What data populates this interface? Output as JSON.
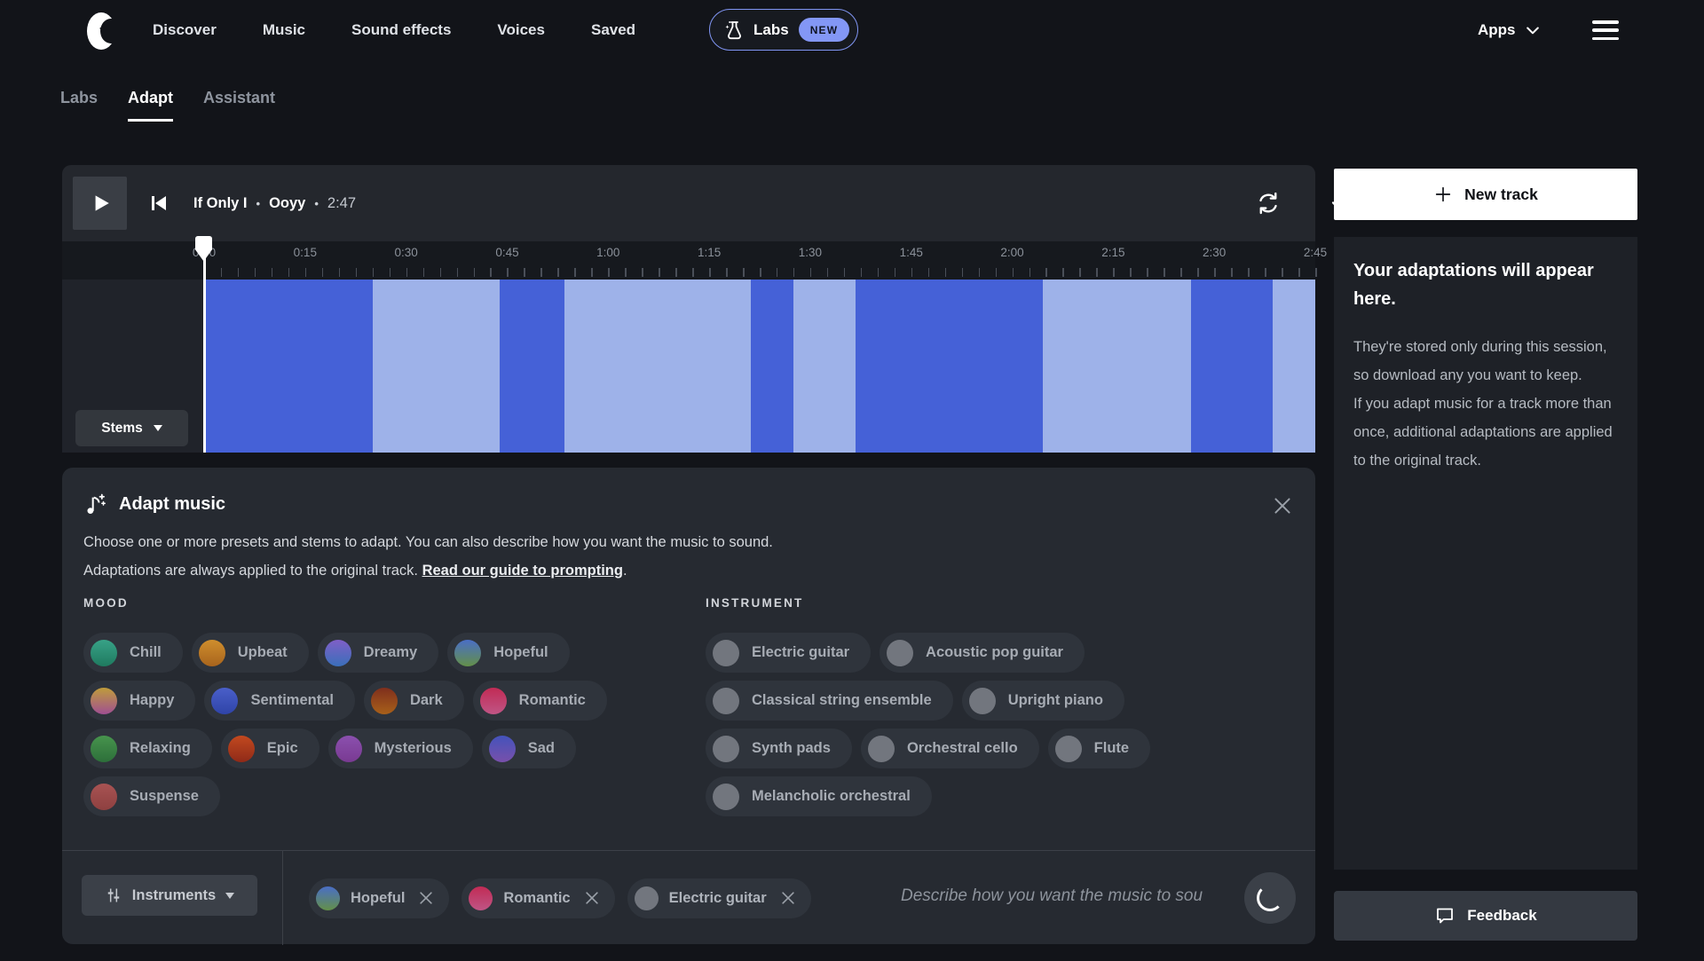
{
  "topnav": {
    "items": [
      "Discover",
      "Music",
      "Sound effects",
      "Voices",
      "Saved"
    ],
    "labs": {
      "label": "Labs",
      "badge": "NEW"
    },
    "apps_label": "Apps"
  },
  "tabs": [
    {
      "label": "Labs",
      "active": false
    },
    {
      "label": "Adapt",
      "active": true
    },
    {
      "label": "Assistant",
      "active": false
    }
  ],
  "player": {
    "track_title": "If Only I",
    "artist": "Ooyy",
    "duration": "2:47",
    "separator": "•",
    "stems_label": "Stems",
    "timeline_labels": [
      "0:00",
      "0:15",
      "0:30",
      "0:45",
      "1:00",
      "1:15",
      "1:30",
      "1:45",
      "2:00",
      "2:15",
      "2:30",
      "2:45"
    ]
  },
  "waveform": {
    "colors": {
      "dark": "#4561d7",
      "light": "#9eb2e9"
    },
    "segments": [
      {
        "shade": "dark",
        "width_pct": 15.2
      },
      {
        "shade": "light",
        "width_pct": 11.4
      },
      {
        "shade": "dark",
        "width_pct": 5.8
      },
      {
        "shade": "light",
        "width_pct": 16.8
      },
      {
        "shade": "dark",
        "width_pct": 3.8
      },
      {
        "shade": "light",
        "width_pct": 5.6
      },
      {
        "shade": "dark",
        "width_pct": 16.9
      },
      {
        "shade": "light",
        "width_pct": 13.3
      },
      {
        "shade": "dark",
        "width_pct": 7.4
      },
      {
        "shade": "light",
        "width_pct": 3.8
      }
    ]
  },
  "adapt_panel": {
    "title": "Adapt music",
    "description_line1": "Choose one or more presets and stems to adapt. You can also describe how you want the music to sound.",
    "description_line2_prefix": "Adaptations are always applied to the original track. ",
    "description_link": "Read our guide to prompting",
    "description_suffix": ".",
    "mood": {
      "label": "MOOD",
      "rows": [
        [
          {
            "label": "Chill",
            "dot": [
              "#38a287",
              "#1f7a5f"
            ]
          },
          {
            "label": "Upbeat",
            "dot": [
              "#cf8e2d",
              "#a8641d"
            ]
          },
          {
            "label": "Dreamy",
            "dot": [
              "#7f5fc7",
              "#3a6fba"
            ]
          },
          {
            "label": "Hopeful",
            "dot": [
              "#4a6ec6",
              "#639049"
            ]
          }
        ],
        [
          {
            "label": "Happy",
            "dot": [
              "#bf9c3b",
              "#a04f92"
            ]
          },
          {
            "label": "Sentimental",
            "dot": [
              "#4a5fc9",
              "#2f44a8"
            ]
          },
          {
            "label": "Dark",
            "dot": [
              "#7f2f1d",
              "#a8601a"
            ]
          },
          {
            "label": "Romantic",
            "dot": [
              "#c12b55",
              "#c05585"
            ]
          }
        ],
        [
          {
            "label": "Relaxing",
            "dot": [
              "#47944d",
              "#2d6f3a"
            ]
          },
          {
            "label": "Epic",
            "dot": [
              "#c2491f",
              "#8f2a18"
            ]
          },
          {
            "label": "Mysterious",
            "dot": [
              "#8b50ae",
              "#793a92"
            ]
          },
          {
            "label": "Sad",
            "dot": [
              "#4453bb",
              "#7850ab"
            ]
          }
        ],
        [
          {
            "label": "Suspense",
            "dot": [
              "#a85353",
              "#8e4040"
            ]
          }
        ]
      ]
    },
    "instrument": {
      "label": "INSTRUMENT",
      "dot_color": "#72767e",
      "rows": [
        [
          "Electric guitar",
          "Acoustic pop guitar"
        ],
        [
          "Classical string ensemble",
          "Upright piano"
        ],
        [
          "Synth pads",
          "Orchestral cello",
          "Flute"
        ],
        [
          "Melancholic orchestral"
        ]
      ]
    },
    "footer": {
      "instruments_button": "Instruments",
      "selected_tags": [
        {
          "label": "Hopeful",
          "dot": [
            "#4a6ec6",
            "#639049"
          ]
        },
        {
          "label": "Romantic",
          "dot": [
            "#c12b55",
            "#c05585"
          ]
        },
        {
          "label": "Electric guitar",
          "dot": "#72767e"
        }
      ],
      "input_placeholder": "Describe how you want the music to sou"
    }
  },
  "sidebar": {
    "new_track_label": "New track",
    "empty_title": "Your adaptations will appear here.",
    "empty_body1": "They're stored only during this session, so download any you want to keep.",
    "empty_body2": "If you adapt music for a track more than once, additional adaptations are applied to the original track.",
    "feedback_label": "Feedback"
  },
  "icons": {
    "logo": "epidemic-sound-logo",
    "labs": "flask-sparkle-icon",
    "apps_chevron": "chevron-down-icon",
    "menu": "hamburger-icon",
    "play": "play-icon",
    "skip_back": "skip-to-start-icon",
    "loop": "sync-arrows-icon",
    "download": "download-arrow-icon",
    "adapt_title": "music-note-sparkle-icon",
    "close": "close-icon",
    "instruments": "mixer-sliders-icon",
    "submit": "loading-spinner",
    "new_track": "plus-icon",
    "feedback": "speech-bubble-icon"
  },
  "colors": {
    "accent_periwinkle": "#8397f6",
    "wave_dark": "#4561d7",
    "wave_light": "#9eb2e9",
    "new_badge_bg": "#8397f6",
    "page_bg": "#121419",
    "panel_bg": "#262a31"
  }
}
